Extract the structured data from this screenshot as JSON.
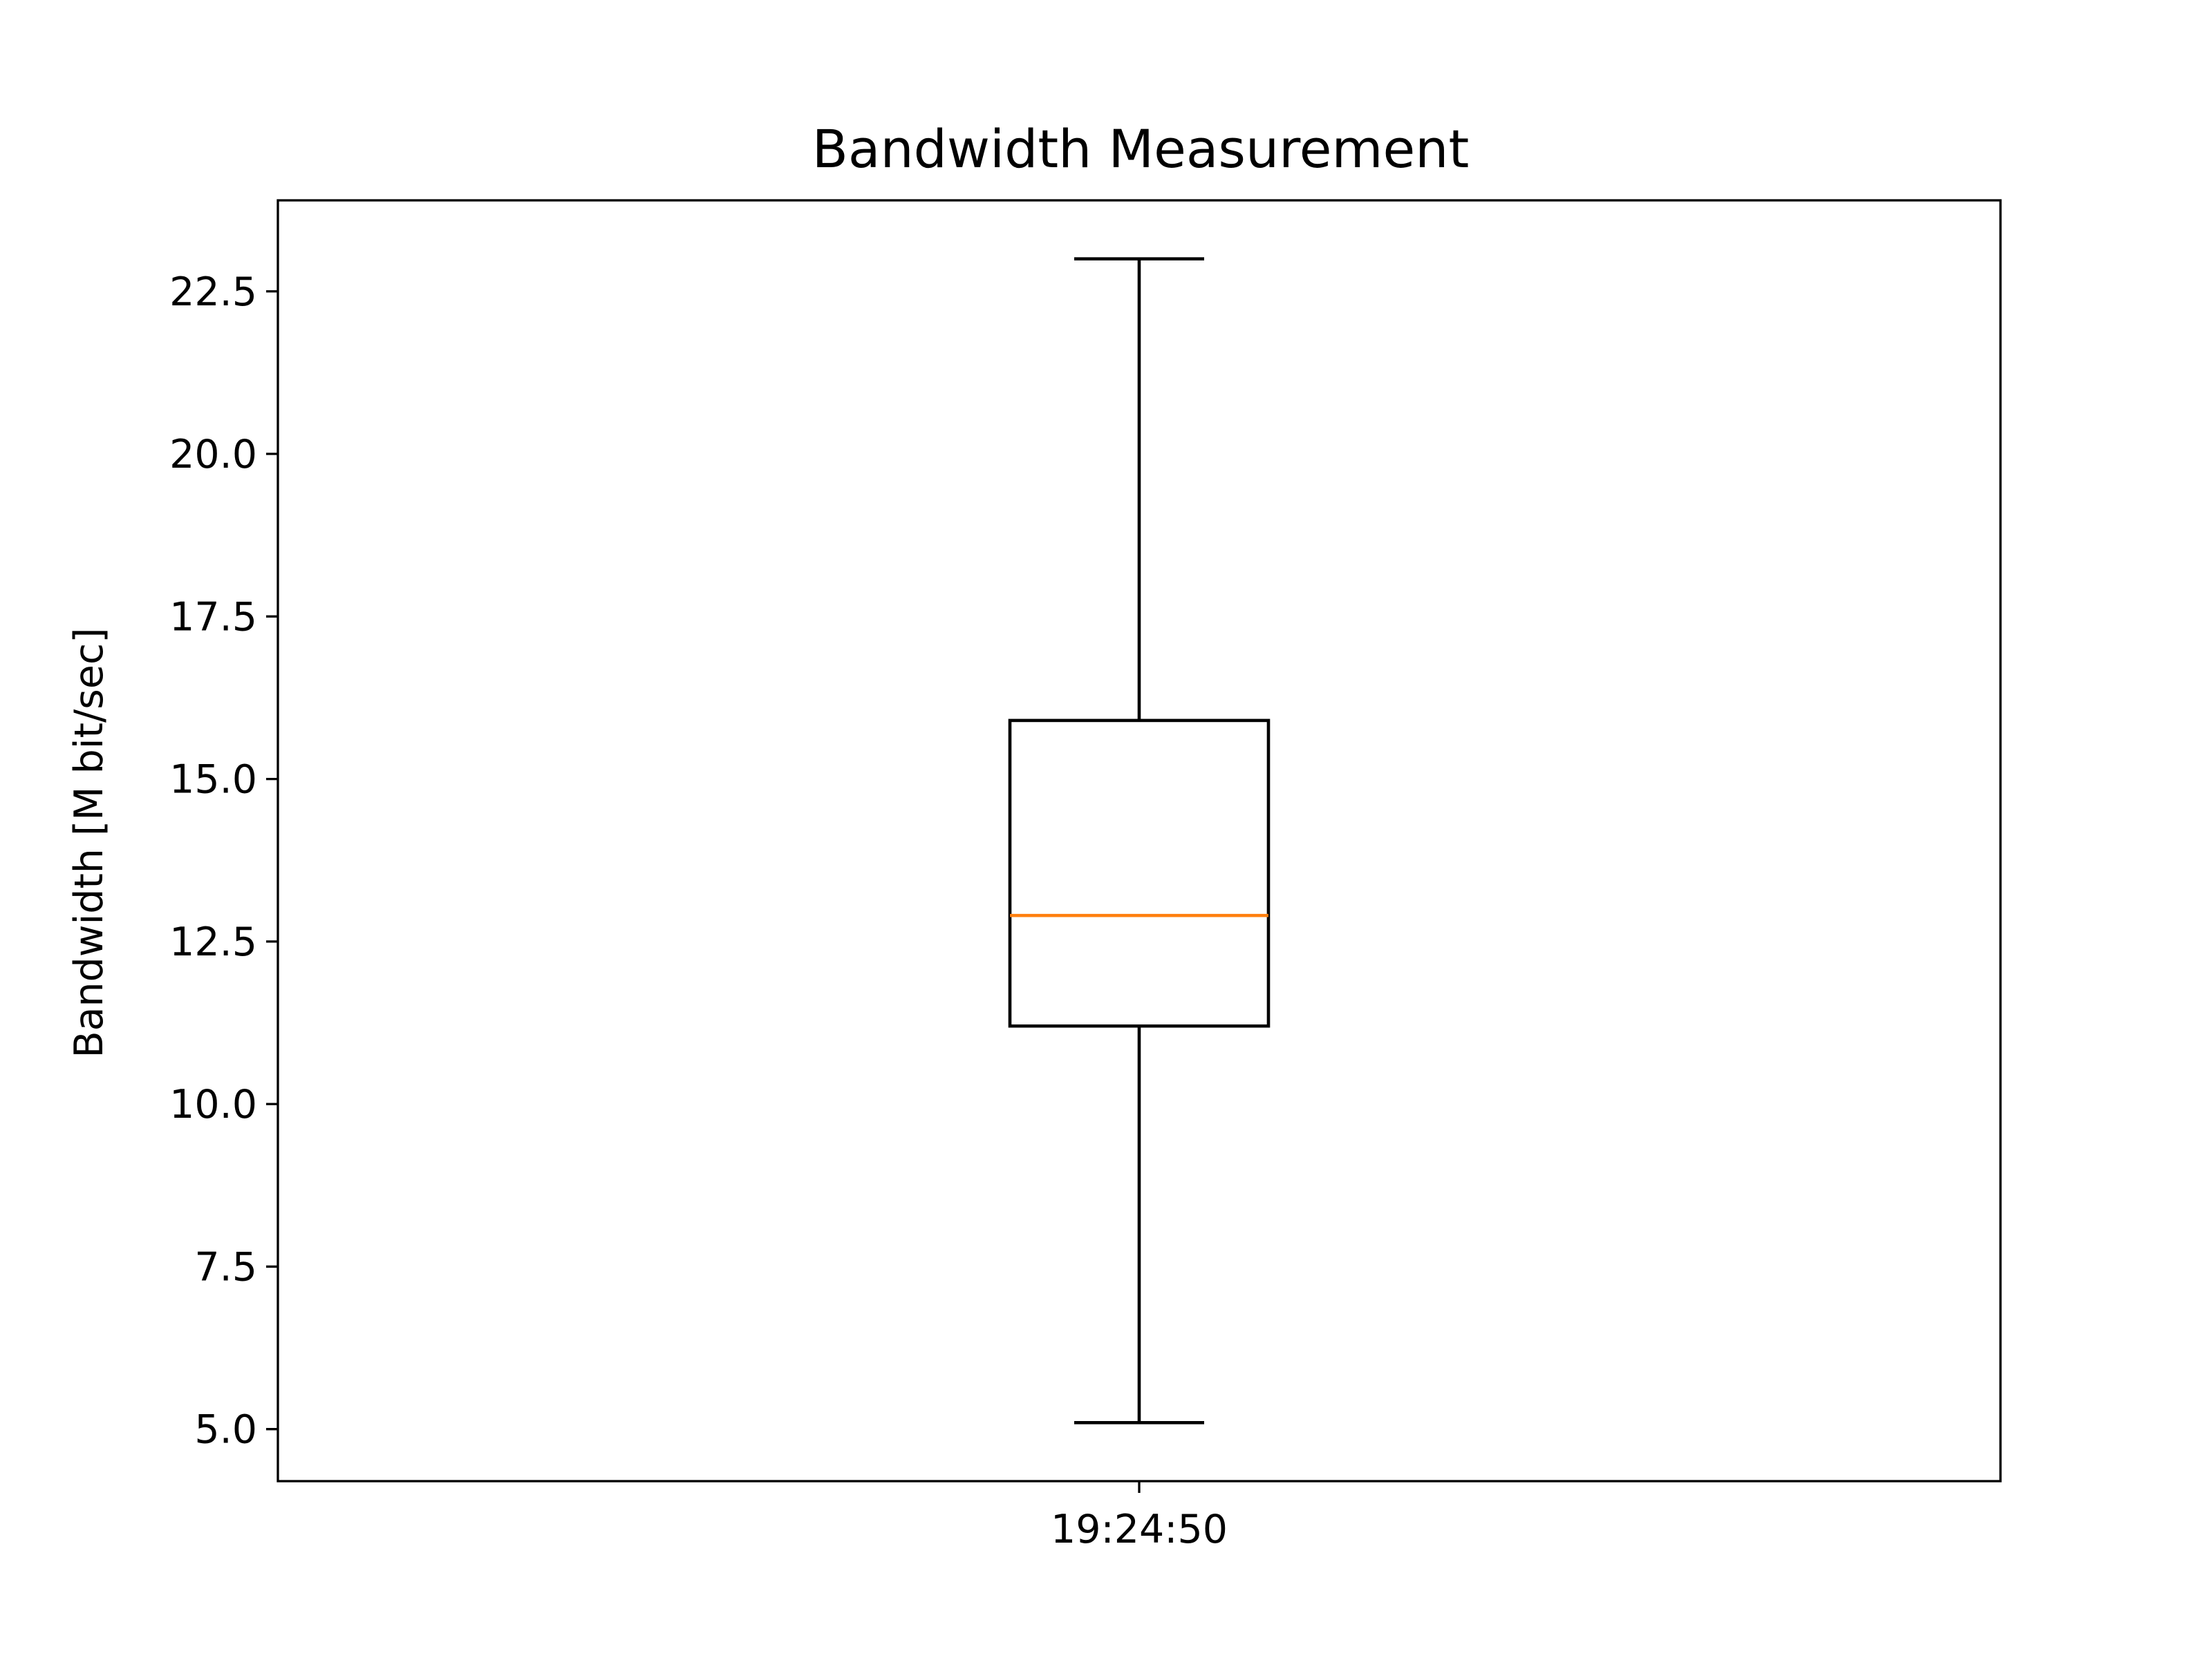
{
  "chart_data": {
    "type": "box",
    "title": "Bandwidth Measurement",
    "xlabel": "",
    "ylabel": "Bandwidth [M bit/sec]",
    "categories": [
      "19:24:50"
    ],
    "boxes": [
      {
        "category": "19:24:50",
        "whisker_low": 5.1,
        "q1": 11.2,
        "median": 12.9,
        "q3": 15.9,
        "whisker_high": 23.0
      }
    ],
    "yticks": [
      5.0,
      7.5,
      10.0,
      12.5,
      15.0,
      17.5,
      20.0,
      22.5
    ],
    "ytick_labels": [
      "5.0",
      "7.5",
      "10.0",
      "12.5",
      "15.0",
      "17.5",
      "20.0",
      "22.5"
    ],
    "ylim": [
      4.2,
      23.9
    ],
    "grid": false,
    "colors": {
      "box": "#000000",
      "median": "#ff7f0e",
      "axes": "#000000"
    }
  }
}
